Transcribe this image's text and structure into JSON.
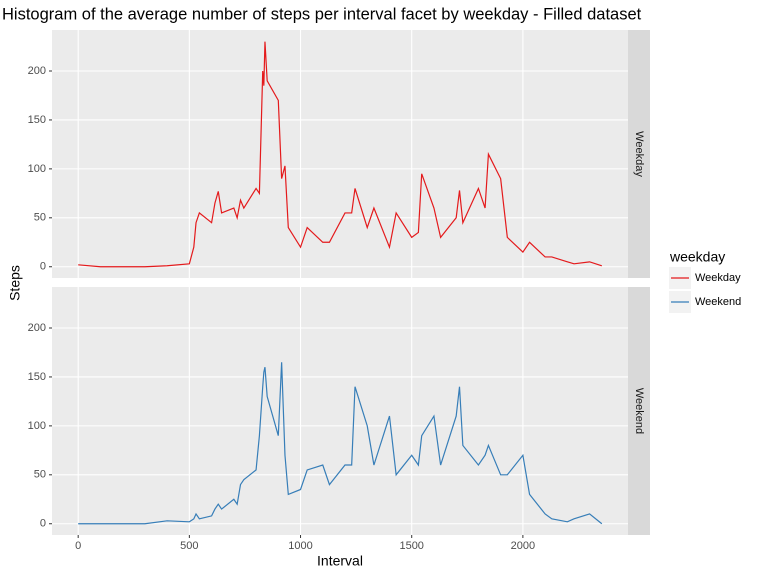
{
  "chart_data": {
    "type": "line",
    "title": "Histogram of the average number of steps per interval facet by weekday - Filled dataset",
    "x_label": "Interval",
    "y_label": "Steps",
    "legend_title": "weekday",
    "x": [
      0,
      100,
      200,
      300,
      400,
      500,
      520,
      530,
      545,
      600,
      615,
      630,
      645,
      700,
      715,
      730,
      745,
      800,
      815,
      830,
      835,
      840,
      850,
      900,
      915,
      930,
      945,
      1000,
      1030,
      1100,
      1130,
      1200,
      1230,
      1245,
      1300,
      1330,
      1400,
      1430,
      1500,
      1530,
      1545,
      1600,
      1630,
      1700,
      1715,
      1730,
      1800,
      1830,
      1845,
      1900,
      1930,
      2000,
      2030,
      2100,
      2130,
      2200,
      2230,
      2300,
      2355
    ],
    "series": [
      {
        "name": "Weekday",
        "color": "#e41a1c",
        "values": [
          2,
          0,
          0,
          0,
          1,
          3,
          20,
          45,
          55,
          45,
          65,
          77,
          55,
          60,
          50,
          68,
          60,
          80,
          75,
          200,
          185,
          230,
          190,
          170,
          90,
          103,
          40,
          20,
          40,
          25,
          25,
          55,
          55,
          80,
          40,
          60,
          20,
          55,
          30,
          35,
          95,
          60,
          30,
          50,
          78,
          45,
          80,
          60,
          115,
          90,
          30,
          15,
          25,
          10,
          10,
          5,
          3,
          5,
          1
        ]
      },
      {
        "name": "Weekend",
        "color": "#377eb8",
        "values": [
          0,
          0,
          0,
          0,
          3,
          2,
          5,
          10,
          5,
          8,
          15,
          20,
          15,
          25,
          20,
          40,
          45,
          55,
          90,
          140,
          155,
          160,
          130,
          90,
          165,
          70,
          30,
          35,
          55,
          60,
          40,
          60,
          60,
          140,
          100,
          60,
          110,
          50,
          70,
          60,
          90,
          110,
          60,
          110,
          140,
          80,
          60,
          70,
          80,
          50,
          50,
          70,
          30,
          10,
          5,
          2,
          5,
          10,
          0
        ]
      }
    ],
    "xlim": [
      -117.75,
      2472.75
    ],
    "ylim": [
      -11.5,
      241.9
    ],
    "xticks": [
      0,
      500,
      1000,
      1500,
      2000
    ],
    "yticks": [
      0,
      50,
      100,
      150,
      200
    ],
    "grid": true
  }
}
